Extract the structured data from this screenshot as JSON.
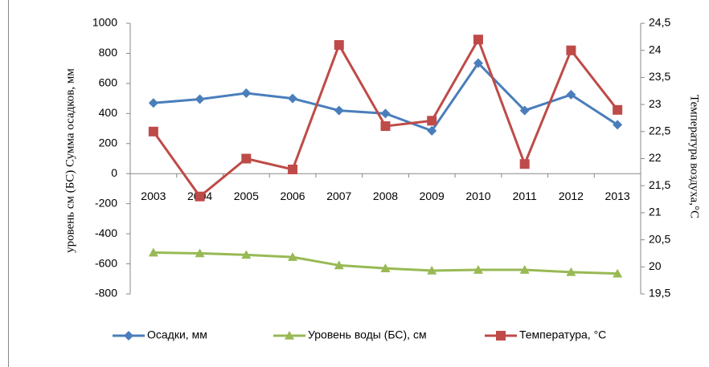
{
  "chart_data": {
    "type": "line",
    "y_label": "уровень см (БС) Сумма осадков, мм",
    "y2_label": "Температура воздуха,°С",
    "categories": [
      "2003",
      "2004",
      "2005",
      "2006",
      "2007",
      "2008",
      "2009",
      "2010",
      "2011",
      "2012",
      "2013"
    ],
    "series": [
      {
        "name": "Осадки, мм",
        "color": "#4a7ebb",
        "marker": "diamond",
        "values": [
          470,
          495,
          535,
          500,
          420,
          400,
          285,
          735,
          420,
          525,
          325
        ]
      },
      {
        "name": "Уровень воды (БС), см",
        "color": "#98b954",
        "marker": "triangle",
        "values": [
          -525,
          -530,
          -540,
          -555,
          -610,
          -630,
          -645,
          -640,
          -640,
          -655,
          -665
        ]
      },
      {
        "name": "Температура, °С",
        "color": "#be4b48",
        "marker": "square",
        "axis": "y2",
        "values": [
          22.5,
          21.3,
          22,
          21.8,
          24.1,
          22.6,
          22.7,
          24.2,
          21.9,
          24,
          22.9
        ]
      }
    ],
    "ylim": [
      -800,
      1000
    ],
    "yticks": [
      -800,
      -600,
      -400,
      -200,
      0,
      200,
      400,
      600,
      800,
      1000
    ],
    "y2lim": [
      19.5,
      24.5
    ],
    "y2ticks": [
      {
        "value": 19.5,
        "label": "19,5"
      },
      20,
      {
        "value": 20.5,
        "label": "20,5"
      },
      21,
      {
        "value": 21.5,
        "label": "21,5"
      },
      22,
      {
        "value": 22.5,
        "label": "22,5"
      },
      23,
      {
        "value": 23.5,
        "label": "23,5"
      },
      24,
      {
        "value": 24.5,
        "label": "24,5"
      }
    ],
    "grid": false,
    "legend": "bottom"
  }
}
